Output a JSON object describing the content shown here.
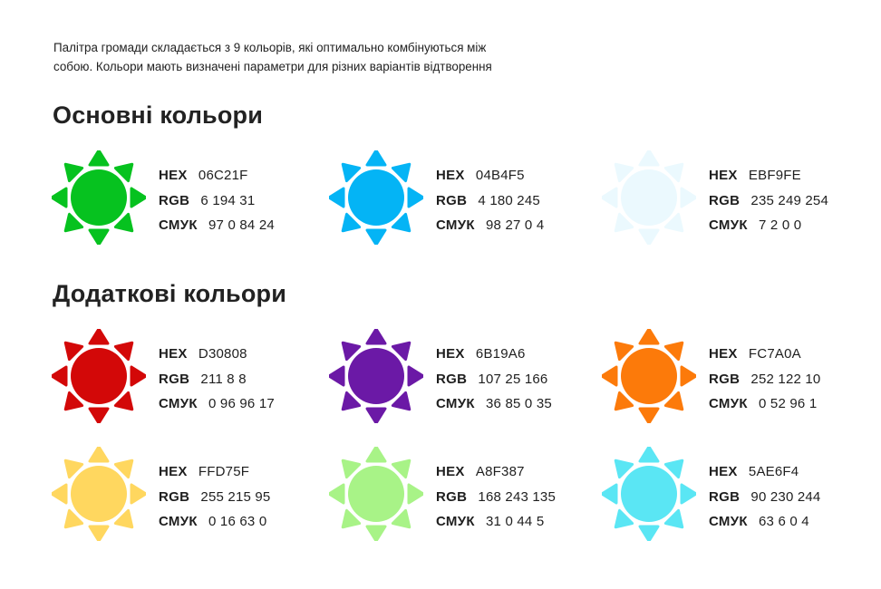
{
  "intro": {
    "line1": "Палітра громади складається з 9 кольорів, які оптимально комбінуються між",
    "line2": "собою. Кольори мають визначені параметри для різних варіантів відтворення"
  },
  "labels": {
    "hex": "HEX",
    "rgb": "RGB",
    "cmyk": "СМУК"
  },
  "sections": [
    {
      "title": "Основні кольори",
      "colors": [
        {
          "hex": "06C21F",
          "rgb": "6 194 31",
          "cmyk": "97 0 84 24",
          "color": "#06C21F"
        },
        {
          "hex": "04B4F5",
          "rgb": "4 180 245",
          "cmyk": "98 27 0 4",
          "color": "#04B4F5"
        },
        {
          "hex": "EBF9FE",
          "rgb": "235 249 254",
          "cmyk": "7 2 0 0",
          "color": "#EBF9FE"
        }
      ]
    },
    {
      "title": "Додаткові кольори",
      "colors": [
        {
          "hex": "D30808",
          "rgb": "211 8 8",
          "cmyk": "0 96 96 17",
          "color": "#D30808"
        },
        {
          "hex": "6B19A6",
          "rgb": "107 25 166",
          "cmyk": "36 85 0 35",
          "color": "#6B19A6"
        },
        {
          "hex": "FC7A0A",
          "rgb": "252 122 10",
          "cmyk": "0 52 96 1",
          "color": "#FC7A0A"
        },
        {
          "hex": "FFD75F",
          "rgb": "255 215 95",
          "cmyk": "0 16 63 0",
          "color": "#FFD75F"
        },
        {
          "hex": "A8F387",
          "rgb": "168 243 135",
          "cmyk": "31 0 44 5",
          "color": "#A8F387"
        },
        {
          "hex": "5AE6F4",
          "rgb": "90 230 244",
          "cmyk": "63 6 0 4",
          "color": "#5AE6F4"
        }
      ]
    }
  ]
}
